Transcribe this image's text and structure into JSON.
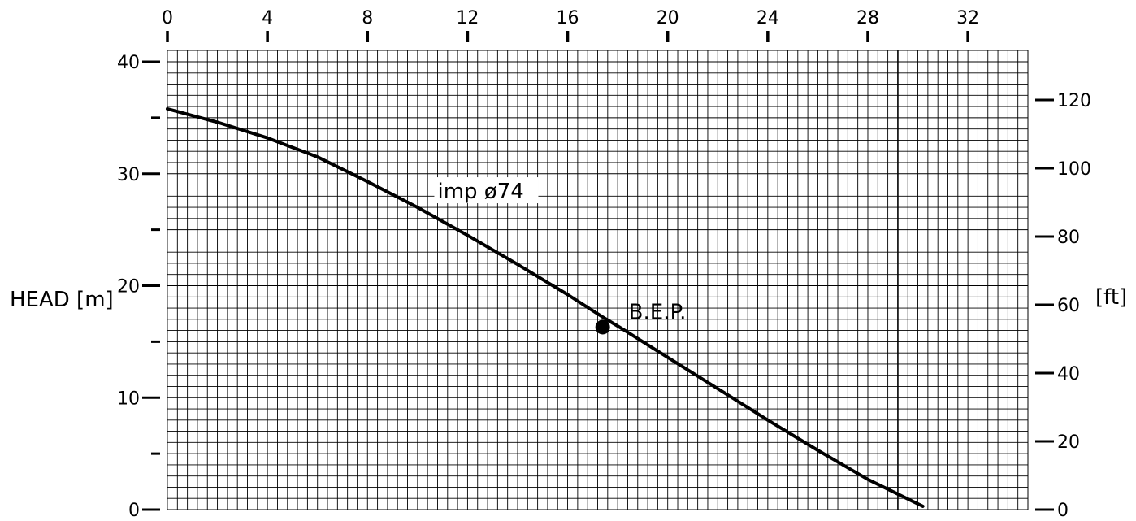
{
  "chart_data": {
    "type": "line",
    "title": "",
    "xlabel": "",
    "ylabel": "HEAD [m]",
    "ylabel_right": "[ft]",
    "xlim": [
      0,
      34.4
    ],
    "ylim": [
      0,
      40
    ],
    "ylim_right_ft": [
      0,
      131.2
    ],
    "x_ticks": [
      "0",
      "4",
      "8",
      "12",
      "16",
      "20",
      "24",
      "28",
      "32"
    ],
    "x_tick_values": [
      0,
      4,
      8,
      12,
      16,
      20,
      24,
      28,
      32
    ],
    "y_ticks_left": [
      "0",
      "10",
      "20",
      "30",
      "40"
    ],
    "y_tick_values_left": [
      0,
      10,
      20,
      30,
      40
    ],
    "y_minor_ticks_left": [
      5,
      15,
      25,
      35
    ],
    "y_ticks_right": [
      "0",
      "20",
      "40",
      "60",
      "80",
      "100",
      "120"
    ],
    "y_tick_values_right": [
      0,
      20,
      40,
      60,
      80,
      100,
      120
    ],
    "grid": true,
    "series": [
      {
        "name": "",
        "x": [
          0,
          2,
          4,
          6,
          8,
          10,
          12,
          14,
          16,
          17.4,
          18,
          20,
          22,
          24,
          26,
          28,
          30.2
        ],
        "y": [
          35.8,
          34.6,
          33.2,
          31.5,
          29.3,
          27.0,
          24.5,
          21.9,
          19.2,
          17.2,
          16.4,
          13.6,
          10.8,
          8.0,
          5.3,
          2.7,
          0.3
        ]
      }
    ],
    "annotations": [
      {
        "text": "imp  ø74",
        "x": 10.8,
        "y": 27.8
      },
      {
        "text": "B.E.P.",
        "x": 17.4,
        "y": 16.3,
        "marker": true
      }
    ]
  }
}
